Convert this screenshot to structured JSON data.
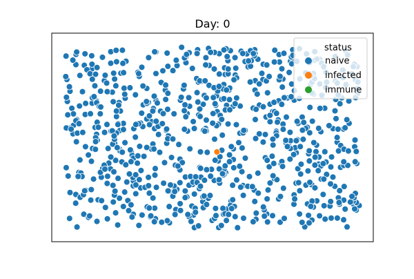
{
  "chart_data": {
    "type": "scatter",
    "title": "Day: 0",
    "xlabel": "",
    "ylabel": "",
    "axes_visible": false,
    "grid": false,
    "legend": {
      "title": "status",
      "placement": "top-right",
      "entries": [
        {
          "label": "naive",
          "color": "#1f77b4"
        },
        {
          "label": "infected",
          "color": "#ff7f0e"
        },
        {
          "label": "immune",
          "color": "#2ca02c"
        }
      ]
    },
    "xlim": [
      0,
      1
    ],
    "ylim": [
      0,
      1
    ],
    "naive_count": 793,
    "naive_seed": 20240601,
    "series": [
      {
        "name": "infected",
        "color": "#ff7f0e",
        "points": [
          [
            0.515,
            0.42
          ]
        ]
      }
    ]
  }
}
